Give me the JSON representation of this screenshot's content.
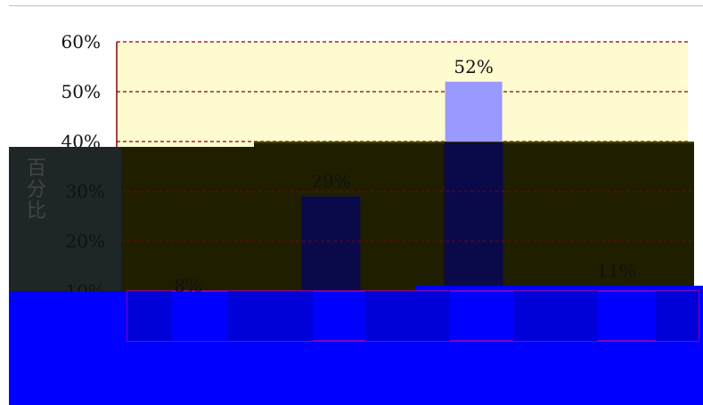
{
  "chart_data": {
    "type": "bar",
    "categories": [
      "",
      "",
      "",
      ""
    ],
    "values": [
      8,
      29,
      52,
      11
    ],
    "data_labels": [
      "8%",
      "29%",
      "52%",
      "11%"
    ],
    "title": "",
    "xlabel": "",
    "ylabel": "百分比",
    "ylim": [
      0,
      60
    ],
    "y_ticks": [
      {
        "value": 10,
        "label": "10%"
      },
      {
        "value": 20,
        "label": "20%"
      },
      {
        "value": 30,
        "label": "30%"
      },
      {
        "value": 40,
        "label": "40%"
      },
      {
        "value": 50,
        "label": "50%"
      },
      {
        "value": 60,
        "label": "60%"
      }
    ],
    "grid": true,
    "legend": "none"
  },
  "colors": {
    "plot_background": "#fffbd0",
    "bar_fill": "#9999ff",
    "gridline": "#8b0000",
    "axis": "#8b0000",
    "overlay_dark": "#1f1f00",
    "overlay_band": "#0a0a4a",
    "overlay_blue": "#0000ff"
  }
}
